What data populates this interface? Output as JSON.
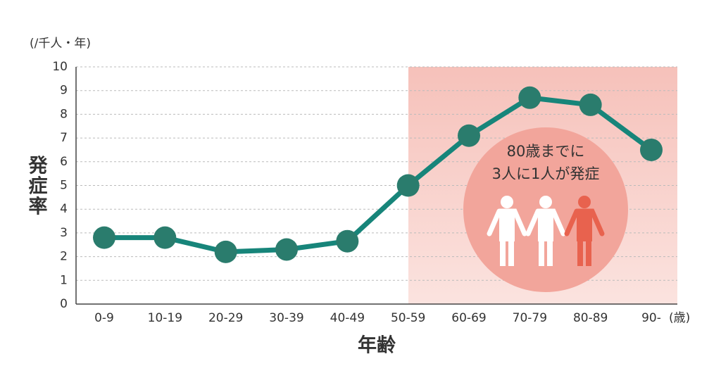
{
  "chart_data": {
    "type": "line",
    "unit_label": "(/千人・年)",
    "y_label": "発症率",
    "x_label": "年齢",
    "x_unit": "(歳)",
    "categories": [
      "0-9",
      "10-19",
      "20-29",
      "30-39",
      "40-49",
      "50-59",
      "60-69",
      "70-79",
      "80-89",
      "90-"
    ],
    "values": [
      2.8,
      2.8,
      2.2,
      2.3,
      2.65,
      5.0,
      7.1,
      8.7,
      8.4,
      6.5
    ],
    "color": "#17857a",
    "ylim": [
      0,
      10
    ],
    "yticks": [
      0,
      1,
      2,
      3,
      4,
      5,
      6,
      7,
      8,
      9,
      10
    ],
    "grid": true,
    "annotations": [
      "80歳までに",
      "3人に1人が発症"
    ]
  }
}
